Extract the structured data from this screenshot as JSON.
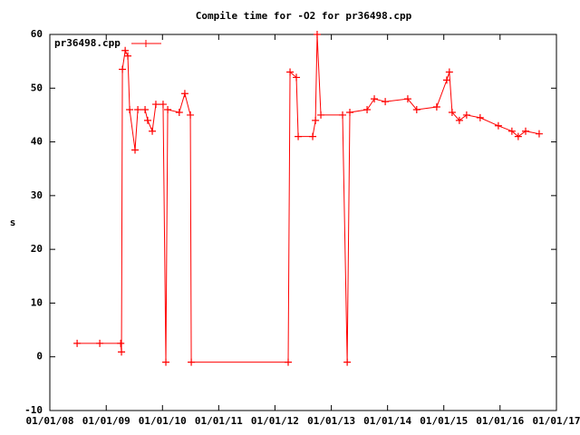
{
  "chart_data": {
    "type": "line",
    "title": "Compile time for -O2 for pr36498.cpp",
    "ylabel": "s",
    "x": [
      "2008-06-26",
      "2008-11-20",
      "2009-04-05",
      "2009-04-10",
      "2009-04-16",
      "2009-05-04",
      "2009-05-21",
      "2009-06-02",
      "2009-07-07",
      "2009-07-25",
      "2009-09-10",
      "2009-09-27",
      "2009-10-27",
      "2009-11-19",
      "2010-01-05",
      "2010-01-23",
      "2010-02-04",
      "2010-04-20",
      "2010-05-26",
      "2010-07-01",
      "2010-07-07",
      "2012-03-27",
      "2012-04-08",
      "2012-05-19",
      "2012-05-31",
      "2012-09-02",
      "2012-09-20",
      "2012-10-01",
      "2012-10-25",
      "2013-03-15",
      "2013-04-14",
      "2013-05-01",
      "2013-08-21",
      "2013-10-07",
      "2013-12-17",
      "2014-05-12",
      "2014-07-09",
      "2014-11-16",
      "2015-01-20",
      "2015-02-06",
      "2015-02-24",
      "2015-04-12",
      "2015-05-29",
      "2015-08-25",
      "2015-12-21",
      "2016-03-18",
      "2016-04-28",
      "2016-06-15",
      "2016-09-11"
    ],
    "series": [
      {
        "name": "pr36498.cpp",
        "color": "#ff0000",
        "values": [
          2.5,
          2.5,
          2.5,
          0.9,
          53.5,
          57,
          56,
          46,
          38.5,
          46,
          46,
          44,
          42,
          47,
          47,
          -1,
          46,
          45.5,
          49,
          45,
          -1,
          -1,
          53,
          52,
          41,
          41,
          44,
          60,
          45,
          45,
          -1,
          45.5,
          46,
          48,
          47.5,
          48,
          46,
          46.5,
          51.5,
          53,
          45.5,
          44,
          45,
          44.5,
          43,
          42,
          41,
          42,
          41.5
        ]
      }
    ],
    "xlim": [
      "2008-01-01",
      "2017-01-01"
    ],
    "xticks": [
      {
        "value": "2008-01-01",
        "label": "01/01/08"
      },
      {
        "value": "2009-01-01",
        "label": "01/01/09"
      },
      {
        "value": "2010-01-01",
        "label": "01/01/10"
      },
      {
        "value": "2011-01-01",
        "label": "01/01/11"
      },
      {
        "value": "2012-01-01",
        "label": "01/01/12"
      },
      {
        "value": "2013-01-01",
        "label": "01/01/13"
      },
      {
        "value": "2014-01-01",
        "label": "01/01/14"
      },
      {
        "value": "2015-01-01",
        "label": "01/01/15"
      },
      {
        "value": "2016-01-01",
        "label": "01/01/16"
      },
      {
        "value": "2017-01-01",
        "label": "01/01/17"
      }
    ],
    "ylim": [
      -10,
      60
    ],
    "yticks": [
      -10,
      0,
      10,
      20,
      30,
      40,
      50,
      60
    ],
    "legend": "top-left"
  }
}
